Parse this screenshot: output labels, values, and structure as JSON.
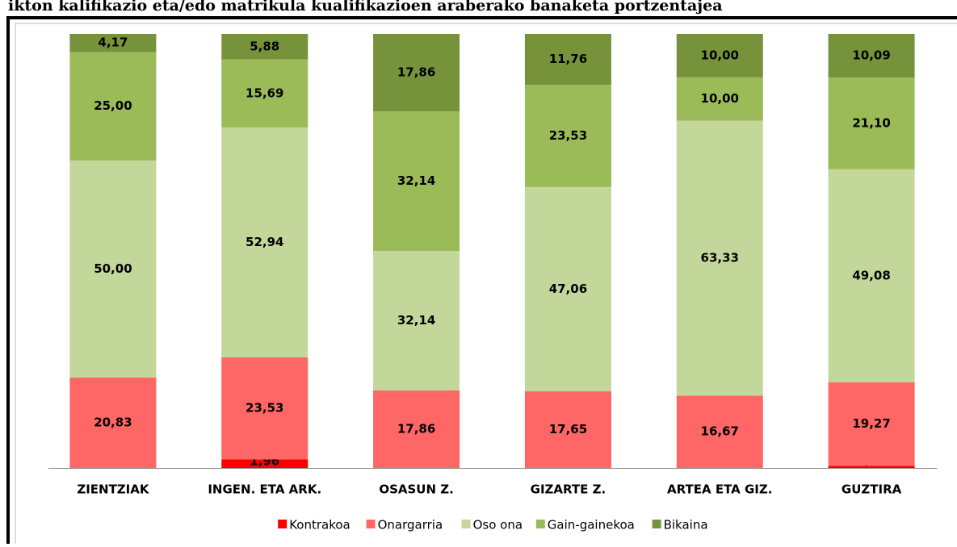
{
  "chart_data": {
    "type": "stacked-bar",
    "title": "ikton kalifikazio eta/edo matrikula kualifikazioen araberako banaketa portzentajea",
    "categories": [
      "ZIENTZIAK",
      "INGEN. ETA ARK.",
      "OSASUN Z.",
      "GIZARTE Z.",
      "ARTEA ETA GIZ.",
      "GUZTIRA"
    ],
    "series": [
      {
        "name": "Kontrakoa",
        "color": "#ff0000",
        "values": [
          null,
          1.96,
          null,
          null,
          null,
          0.46
        ],
        "value_labels": [
          null,
          "1,96",
          null,
          null,
          null,
          "0,46"
        ]
      },
      {
        "name": "Onargarria",
        "color": "#ff6666",
        "values": [
          20.83,
          23.53,
          17.86,
          17.65,
          16.67,
          19.27
        ],
        "value_labels": [
          "20,83",
          "23,53",
          "17,86",
          "17,65",
          "16,67",
          "19,27"
        ]
      },
      {
        "name": "Oso ona",
        "color": "#c4d79b",
        "values": [
          50.0,
          52.94,
          32.14,
          47.06,
          63.33,
          49.08
        ],
        "value_labels": [
          "50,00",
          "52,94",
          "32,14",
          "47,06",
          "63,33",
          "49,08"
        ]
      },
      {
        "name": "Gain-gainekoa",
        "color": "#9bbb59",
        "values": [
          25.0,
          15.69,
          32.14,
          23.53,
          10.0,
          21.1
        ],
        "value_labels": [
          "25,00",
          "15,69",
          "32,14",
          "23,53",
          "10,00",
          "21,10"
        ]
      },
      {
        "name": "Bikaina",
        "color": "#76933c",
        "values": [
          4.17,
          5.88,
          17.86,
          11.76,
          10.0,
          10.09
        ],
        "value_labels": [
          "4,17",
          "5,88",
          "17,86",
          "11,76",
          "10,00",
          "10,09"
        ]
      }
    ],
    "ylim": [
      0,
      100
    ],
    "legend": "bottom"
  }
}
